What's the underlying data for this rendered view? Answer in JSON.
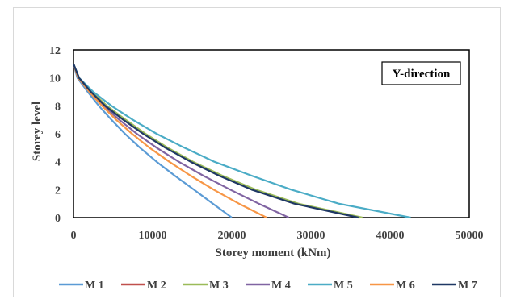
{
  "chart_data": {
    "type": "line",
    "title": "",
    "xlabel": "Storey moment (kNm)",
    "ylabel": "Storey level",
    "xlim": [
      0,
      50000
    ],
    "ylim": [
      0,
      12
    ],
    "xticks": [
      "0",
      "10000",
      "20000",
      "30000",
      "40000",
      "50000"
    ],
    "yticks": [
      "0",
      "2",
      "4",
      "6",
      "8",
      "10",
      "12"
    ],
    "grid": false,
    "legend_position": "bottom",
    "annotation": "Y-direction",
    "series": [
      {
        "name": "M 1",
        "color": "#5b9bd5",
        "points": [
          [
            0,
            11
          ],
          [
            500,
            10
          ],
          [
            1800,
            9
          ],
          [
            3200,
            8
          ],
          [
            4800,
            7
          ],
          [
            6500,
            6
          ],
          [
            8400,
            5
          ],
          [
            10500,
            4
          ],
          [
            12800,
            3
          ],
          [
            15200,
            2
          ],
          [
            17600,
            1
          ],
          [
            20000,
            0
          ]
        ]
      },
      {
        "name": "M 2",
        "color": "#c0504d",
        "points": [
          [
            0,
            11
          ],
          [
            600,
            10
          ],
          [
            2300,
            9
          ],
          [
            4200,
            8
          ],
          [
            6500,
            7
          ],
          [
            9000,
            6
          ],
          [
            11800,
            5
          ],
          [
            15000,
            4
          ],
          [
            18600,
            3
          ],
          [
            22800,
            2
          ],
          [
            28200,
            1
          ],
          [
            36200,
            0
          ]
        ]
      },
      {
        "name": "M 3",
        "color": "#9bbb59",
        "points": [
          [
            0,
            11
          ],
          [
            600,
            10
          ],
          [
            2300,
            9
          ],
          [
            4200,
            8
          ],
          [
            6600,
            7
          ],
          [
            9100,
            6
          ],
          [
            11900,
            5
          ],
          [
            15100,
            4
          ],
          [
            18800,
            3
          ],
          [
            23000,
            2
          ],
          [
            28400,
            1
          ],
          [
            36500,
            0
          ]
        ]
      },
      {
        "name": "M 4",
        "color": "#8064a2",
        "points": [
          [
            0,
            11
          ],
          [
            600,
            10
          ],
          [
            2100,
            9
          ],
          [
            3800,
            8
          ],
          [
            5800,
            7
          ],
          [
            8000,
            6
          ],
          [
            10500,
            5
          ],
          [
            13300,
            4
          ],
          [
            16400,
            3
          ],
          [
            19800,
            2
          ],
          [
            23400,
            1
          ],
          [
            27200,
            0
          ]
        ]
      },
      {
        "name": "M 5",
        "color": "#4bacc6",
        "points": [
          [
            0,
            11
          ],
          [
            700,
            10
          ],
          [
            2500,
            9
          ],
          [
            4800,
            8
          ],
          [
            7500,
            7
          ],
          [
            10500,
            6
          ],
          [
            14000,
            5
          ],
          [
            17800,
            4
          ],
          [
            22500,
            3
          ],
          [
            27500,
            2
          ],
          [
            33500,
            1
          ],
          [
            42600,
            0
          ]
        ]
      },
      {
        "name": "M 6",
        "color": "#f79646",
        "points": [
          [
            0,
            11
          ],
          [
            600,
            10
          ],
          [
            2000,
            9
          ],
          [
            3600,
            8
          ],
          [
            5400,
            7
          ],
          [
            7400,
            6
          ],
          [
            9600,
            5
          ],
          [
            12100,
            4
          ],
          [
            14800,
            3
          ],
          [
            17700,
            2
          ],
          [
            20900,
            1
          ],
          [
            24400,
            0
          ]
        ]
      },
      {
        "name": "M 7",
        "color": "#1f3864",
        "points": [
          [
            0,
            11
          ],
          [
            700,
            10
          ],
          [
            2200,
            9
          ],
          [
            4000,
            8
          ],
          [
            6300,
            7
          ],
          [
            8800,
            6
          ],
          [
            11600,
            5
          ],
          [
            14800,
            4
          ],
          [
            18400,
            3
          ],
          [
            22500,
            2
          ],
          [
            27900,
            1
          ],
          [
            36000,
            0
          ]
        ]
      }
    ]
  }
}
